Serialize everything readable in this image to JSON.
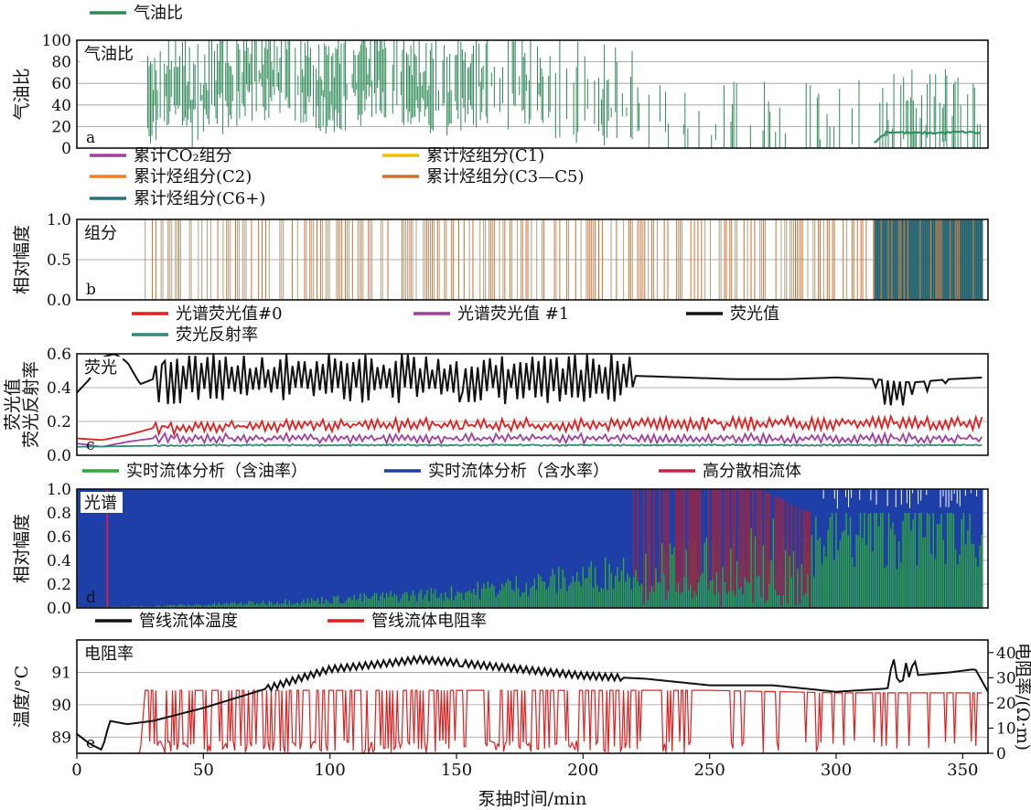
{
  "figure": {
    "xlabel": "泵抽时间/min",
    "x_ticks": [
      0,
      50,
      100,
      150,
      200,
      250,
      300,
      350
    ]
  },
  "chart_data": [
    {
      "type": "line",
      "panel_letter": "a",
      "panel_label": "气油比",
      "ylabel": "气油比",
      "ylim": [
        0,
        100
      ],
      "y_ticks": [
        0,
        20,
        40,
        60,
        80,
        100
      ],
      "x_range": [
        0,
        360
      ],
      "legend": [
        {
          "name": "气油比",
          "color": "#2e8b57"
        }
      ],
      "series": [
        {
          "name": "气油比",
          "color": "#2e8b57",
          "x": [
            28,
            35,
            45,
            60,
            80,
            100,
            120,
            140,
            160,
            180,
            200,
            220,
            235,
            250,
            265,
            280,
            300,
            315,
            320,
            330,
            340,
            350,
            357
          ],
          "y": [
            30,
            60,
            40,
            55,
            70,
            50,
            65,
            45,
            60,
            55,
            40,
            35,
            20,
            10,
            5,
            8,
            6,
            5,
            15,
            14,
            14,
            15,
            14
          ],
          "spike_density": [
            0.8,
            0.9,
            0.9,
            0.9,
            0.8,
            0.9,
            0.7,
            0.8,
            0.6,
            0.5,
            0.3,
            0.3,
            0.2,
            0.1,
            0.1,
            0.2,
            0.2,
            0.3,
            0.5,
            0.5,
            0.5,
            0.4,
            0.3
          ]
        }
      ]
    },
    {
      "type": "bar",
      "panel_letter": "b",
      "panel_label": "组分",
      "ylabel": "相对幅度",
      "ylim": [
        0,
        1.0
      ],
      "y_ticks": [
        "0.0",
        "0.5",
        "1.0"
      ],
      "x_range": [
        0,
        360
      ],
      "legend": [
        {
          "name": "累计CO₂组分",
          "color": "#a040a0"
        },
        {
          "name": "累计烃组分(C1)",
          "color": "#f0c000"
        },
        {
          "name": "累计烃组分(C2)",
          "color": "#f08020"
        },
        {
          "name": "累计烃组分(C3—C5)",
          "color": "#d07030"
        },
        {
          "name": "累计烃组分(C6+)",
          "color": "#2a6f7a"
        }
      ],
      "segments": [
        {
          "x_start": 27,
          "x_end": 315,
          "dominant": "累计烃组分(C3—C5)",
          "value": 1.0
        },
        {
          "x_start": 315,
          "x_end": 358,
          "dominant": "累计烃组分(C6+)",
          "value": 1.0
        }
      ]
    },
    {
      "type": "line",
      "panel_letter": "c",
      "panel_label": "荧光",
      "ylabel": "荧光值\n荧光反射率",
      "ylim": [
        0,
        0.6
      ],
      "y_ticks": [
        "0.0",
        "0.2",
        "0.4",
        "0.6"
      ],
      "x_range": [
        0,
        360
      ],
      "legend": [
        {
          "name": "光谱荧光值#0",
          "color": "#e02020"
        },
        {
          "name": "光谱荧光值 #1",
          "color": "#a040a0"
        },
        {
          "name": "荧光值",
          "color": "#111111"
        },
        {
          "name": "荧光反射率",
          "color": "#2e8b7a"
        }
      ],
      "series": [
        {
          "name": "荧光值",
          "color": "#111111",
          "x": [
            0,
            5,
            10,
            15,
            20,
            25,
            30,
            50,
            100,
            150,
            200,
            220,
            240,
            260,
            280,
            300,
            315,
            330,
            345,
            358
          ],
          "y": [
            0.37,
            0.45,
            0.58,
            0.6,
            0.55,
            0.42,
            0.45,
            0.45,
            0.46,
            0.45,
            0.45,
            0.47,
            0.46,
            0.45,
            0.45,
            0.46,
            0.45,
            0.43,
            0.45,
            0.46
          ]
        },
        {
          "name": "光谱荧光值#0",
          "color": "#e02020",
          "x": [
            0,
            10,
            20,
            30,
            50,
            100,
            150,
            200,
            250,
            300,
            358
          ],
          "y": [
            0.1,
            0.09,
            0.12,
            0.16,
            0.17,
            0.18,
            0.18,
            0.18,
            0.19,
            0.19,
            0.19
          ]
        },
        {
          "name": "光谱荧光值 #1",
          "color": "#a040a0",
          "x": [
            0,
            10,
            20,
            30,
            50,
            100,
            150,
            200,
            250,
            300,
            358
          ],
          "y": [
            0.07,
            0.05,
            0.08,
            0.1,
            0.1,
            0.1,
            0.1,
            0.1,
            0.1,
            0.1,
            0.1
          ]
        },
        {
          "name": "荧光反射率",
          "color": "#2e8b7a",
          "x": [
            0,
            50,
            100,
            150,
            200,
            250,
            300,
            358
          ],
          "y": [
            0.05,
            0.06,
            0.06,
            0.06,
            0.06,
            0.06,
            0.06,
            0.06
          ]
        }
      ]
    },
    {
      "type": "area",
      "panel_letter": "d",
      "panel_label": "光谱",
      "ylabel": "相对幅度",
      "ylim": [
        0,
        1.0
      ],
      "y_ticks": [
        "0.0",
        "0.2",
        "0.4",
        "0.6",
        "0.8",
        "1.0"
      ],
      "x_range": [
        0,
        360
      ],
      "legend": [
        {
          "name": "实时流体分析（含油率）",
          "color": "#2faa3a"
        },
        {
          "name": "实时流体分析（含水率）",
          "color": "#1f3fa8"
        },
        {
          "name": "高分散相流体",
          "color": "#d0204a"
        }
      ],
      "series": [
        {
          "name": "实时流体分析（含油率）",
          "color": "#2faa3a",
          "x": [
            0,
            50,
            100,
            150,
            200,
            220,
            250,
            280,
            300,
            320,
            340,
            358
          ],
          "y": [
            0.0,
            0.03,
            0.08,
            0.15,
            0.3,
            0.4,
            0.5,
            0.6,
            0.7,
            0.8,
            0.8,
            0.8
          ]
        },
        {
          "name": "实时流体分析（含水率）",
          "color": "#1f3fa8",
          "x": [
            0,
            50,
            100,
            150,
            200,
            220,
            250,
            280,
            300,
            320,
            340,
            358
          ],
          "y": [
            1.0,
            0.97,
            0.92,
            0.85,
            0.7,
            0.6,
            0.5,
            0.4,
            0.3,
            0.2,
            0.2,
            0.2
          ]
        },
        {
          "name": "高分散相流体",
          "color": "#d0204a",
          "x": [
            220,
            230,
            240,
            250,
            260,
            270,
            280,
            290
          ],
          "y": [
            1.0,
            1.0,
            1.0,
            1.0,
            1.0,
            1.0,
            0.9,
            0.8
          ]
        }
      ]
    },
    {
      "type": "line",
      "panel_letter": "e",
      "panel_label": "电阻率",
      "ylabel": "温度/°C",
      "ylabel_right": "电阻率/(Ω·m)",
      "ylim": [
        88.5,
        92
      ],
      "y_ticks": [
        "89",
        "90",
        "91"
      ],
      "ylim_right": [
        0,
        45
      ],
      "y_ticks_right": [
        "0",
        "10",
        "20",
        "30",
        "40"
      ],
      "x_range": [
        0,
        360
      ],
      "legend": [
        {
          "name": "管线流体温度",
          "color": "#111111"
        },
        {
          "name": "管线流体电阻率",
          "color": "#e02020"
        }
      ],
      "series": [
        {
          "name": "管线流体温度",
          "color": "#111111",
          "axis": "left",
          "x": [
            0,
            5,
            10,
            13,
            20,
            30,
            50,
            75,
            100,
            125,
            135,
            150,
            175,
            200,
            225,
            250,
            275,
            300,
            320,
            330,
            345,
            355,
            360
          ],
          "y": [
            89.1,
            88.8,
            88.6,
            89.5,
            89.4,
            89.5,
            89.9,
            90.5,
            91.1,
            91.3,
            91.4,
            91.3,
            91.1,
            90.9,
            90.8,
            90.6,
            90.6,
            90.4,
            90.5,
            90.9,
            91.0,
            91.1,
            90.4
          ]
        },
        {
          "name": "管线流体电阻率",
          "color": "#e02020",
          "axis": "right",
          "x": [
            0,
            25,
            27,
            60,
            100,
            150,
            200,
            250,
            300,
            358
          ],
          "y": [
            0,
            0,
            25,
            25,
            25,
            25,
            25,
            25,
            24,
            24
          ],
          "drop_density": [
            0,
            0,
            0.9,
            0.9,
            0.9,
            0.8,
            0.6,
            0.4,
            0.3,
            0.3
          ]
        }
      ]
    }
  ]
}
